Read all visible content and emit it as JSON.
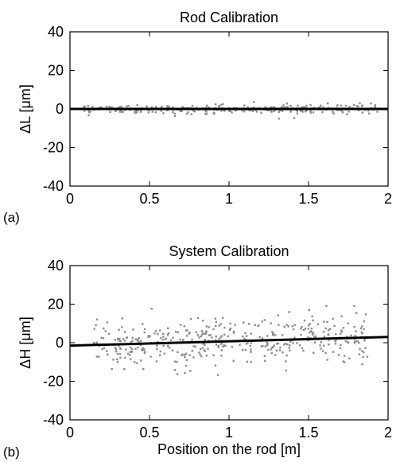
{
  "chart_data": [
    {
      "type": "scatter",
      "panel_label": "(a)",
      "title": "Rod Calibration",
      "xlabel": "",
      "ylabel": "ΔL [μm]",
      "xlim": [
        0,
        2
      ],
      "ylim": [
        -40,
        40
      ],
      "xticks": [
        0,
        0.5,
        1,
        1.5,
        2
      ],
      "xtick_labels": [
        "0",
        "0.5",
        "1",
        "1.5",
        "2"
      ],
      "yticks": [
        40,
        20,
        0,
        -20,
        -40
      ],
      "ytick_labels": [
        "40",
        "20",
        "0",
        "-20",
        "-40"
      ],
      "grid": false,
      "fit_line": {
        "x": [
          0,
          2
        ],
        "y": [
          0,
          0
        ]
      },
      "scatter_x_range": [
        0.08,
        1.94
      ],
      "scatter_spread": 1.2,
      "scatter_count": 300,
      "point_color": "#8c8c8c",
      "line_color": "#000000"
    },
    {
      "type": "scatter",
      "panel_label": "(b)",
      "title": "System Calibration",
      "xlabel": "Position on the rod [m]",
      "ylabel": "ΔH [μm]",
      "xlim": [
        0,
        2
      ],
      "ylim": [
        -40,
        40
      ],
      "xticks": [
        0,
        0.5,
        1,
        1.5,
        2
      ],
      "xtick_labels": [
        "0",
        "0.5",
        "1",
        "1.5",
        "2"
      ],
      "yticks": [
        40,
        20,
        0,
        -20,
        -40
      ],
      "ytick_labels": [
        "40",
        "20",
        "0",
        "-20",
        "-40"
      ],
      "grid": false,
      "fit_line": {
        "x": [
          0,
          2
        ],
        "y": [
          -1.5,
          3
        ]
      },
      "scatter_x_range": [
        0.15,
        1.87
      ],
      "scatter_spread": 6,
      "scatter_count": 420,
      "point_color": "#8c8c8c",
      "line_color": "#000000"
    }
  ]
}
